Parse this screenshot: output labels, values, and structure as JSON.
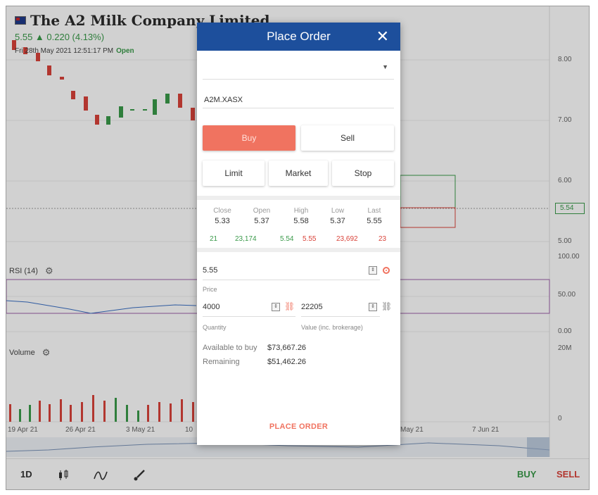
{
  "background": {
    "title": "The A2 Milk Company Limited",
    "price_change": "5.55 ▲ 0.220 (4.13%)",
    "datetime": "Fri 28th May 2021 12:51:17 PM",
    "status": "Open",
    "price_axis": [
      "8.00",
      "7.00",
      "6.00",
      "5.00"
    ],
    "last_price_badge": "5.54",
    "rsi_label": "RSI (14)",
    "rsi_axis": [
      "100.00",
      "50.00",
      "0.00"
    ],
    "volume_label": "Volume",
    "volume_axis": [
      "20M",
      "0"
    ],
    "date_axis": [
      "19 Apr 21",
      "26 Apr 21",
      "3 May 21",
      "10",
      "May 21",
      "7 Jun 21"
    ]
  },
  "toolbar": {
    "interval": "1D",
    "candles_icon": "candlestick-icon",
    "indicator_icon": "indicator-icon",
    "draw_icon": "brush-icon",
    "buy_label": "BUY",
    "sell_label": "SELL"
  },
  "modal": {
    "title": "Place Order",
    "close_glyph": "✕",
    "symbol": "A2M.XASX",
    "side": {
      "buy": "Buy",
      "sell": "Sell",
      "selected": "Buy"
    },
    "order_types": [
      "Limit",
      "Market",
      "Stop"
    ],
    "stats": {
      "headers": [
        "Close",
        "Open",
        "High",
        "Low",
        "Last"
      ],
      "values": [
        "5.33",
        "5.37",
        "5.58",
        "5.37",
        "5.55"
      ]
    },
    "depth": {
      "bid_count": "21",
      "bid_volume": "23,174",
      "bid_price": "5.54",
      "ask_price": "5.55",
      "ask_volume": "23,692",
      "ask_count": "23"
    },
    "price": {
      "value": "5.55",
      "label": "Price"
    },
    "quantity": {
      "value": "4000",
      "label": "Quantity"
    },
    "order_value": {
      "value": "22205",
      "label": "Value (inc. brokerage)"
    },
    "available": {
      "label": "Available to buy",
      "value": "$73,667.26"
    },
    "remaining": {
      "label": "Remaining",
      "value": "$51,462.26"
    },
    "place_order": "PLACE ORDER"
  },
  "colors": {
    "header_blue": "#1d4f9c",
    "buy_accent": "#f07360",
    "up_green": "#3a9a4a",
    "down_red": "#d9433a"
  }
}
